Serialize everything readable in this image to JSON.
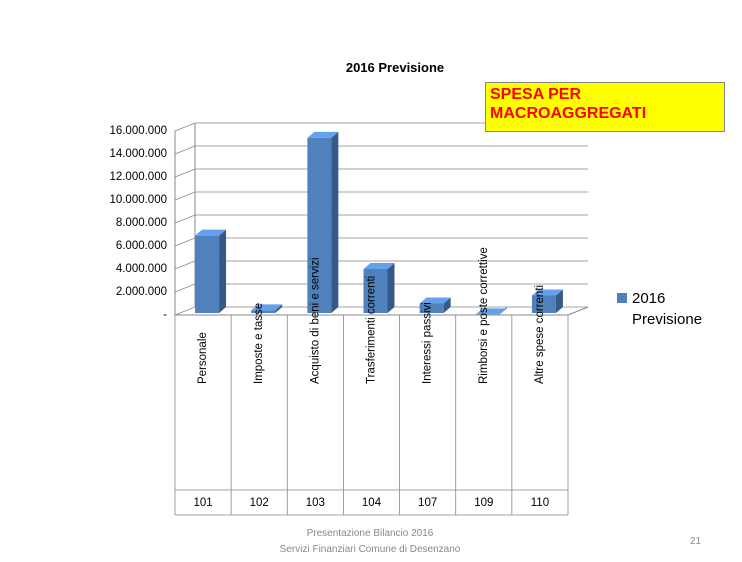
{
  "chart_data": {
    "type": "bar3d",
    "title": "2016 Previsione",
    "annotation": "SPESA PER MACROAGGREGATI",
    "categories": [
      "Personale",
      "Imposte e tasse",
      "Acquisto di beni e servizi",
      "Trasferimenti correnti",
      "Interessi passivi",
      "Rimborsi e poste correttive",
      "Altre spese correnti"
    ],
    "codes": [
      "101",
      "102",
      "103",
      "104",
      "107",
      "109",
      "110"
    ],
    "series": [
      {
        "name": "2016 Previsione",
        "color": "#4f81bd",
        "values": [
          6900000,
          400000,
          15400000,
          4000000,
          1000000,
          50000,
          1700000
        ]
      }
    ],
    "ylim": [
      0,
      16000000
    ],
    "yticks": [
      {
        "value": 0,
        "label": "-"
      },
      {
        "value": 2000000,
        "label": "2.000.000"
      },
      {
        "value": 4000000,
        "label": "4.000.000"
      },
      {
        "value": 6000000,
        "label": "6.000.000"
      },
      {
        "value": 8000000,
        "label": "8.000.000"
      },
      {
        "value": 10000000,
        "label": "10.000.000"
      },
      {
        "value": 12000000,
        "label": "12.000.000"
      },
      {
        "value": 14000000,
        "label": "14.000.000"
      },
      {
        "value": 16000000,
        "label": "16.000.000"
      }
    ],
    "grid": true,
    "legend": "right"
  },
  "footer": [
    "Presentazione Bilancio 2016",
    "Servizi Finanziari Comune di Desenzano"
  ],
  "page_number": "21"
}
